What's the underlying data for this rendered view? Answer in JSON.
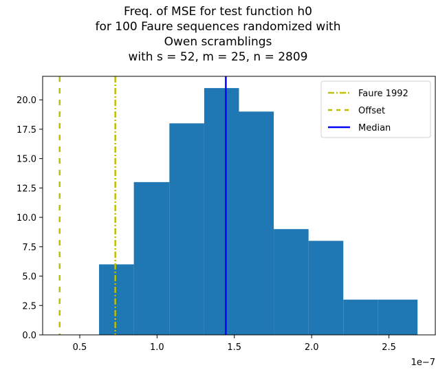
{
  "chart_data": {
    "type": "bar",
    "title_lines": [
      "Freq. of MSE for test function h0",
      "for 100 Faure sequences randomized with",
      "Owen scramblings",
      "with s = 52, m = 25, n = 2809"
    ],
    "xlabel": "",
    "ylabel": "",
    "x_offset_label": "1e−7",
    "xlim": [
      0.26,
      2.8
    ],
    "ylim": [
      0,
      22
    ],
    "x_ticks": [
      0.5,
      1.0,
      1.5,
      2.0,
      2.5
    ],
    "x_tick_labels": [
      "0.5",
      "1.0",
      "1.5",
      "2.0",
      "2.5"
    ],
    "y_ticks": [
      0,
      2.5,
      5,
      7.5,
      10,
      12.5,
      15,
      17.5,
      20
    ],
    "y_tick_labels": [
      "0.0",
      "2.5",
      "5.0",
      "7.5",
      "10.0",
      "12.5",
      "15.0",
      "17.5",
      "20.0"
    ],
    "bin_edges": [
      0.625,
      0.85,
      1.08,
      1.305,
      1.53,
      1.755,
      1.98,
      2.205,
      2.43,
      2.685
    ],
    "values": [
      6,
      13,
      18,
      21,
      19,
      9,
      8,
      3,
      3
    ],
    "bar_color": "#1f77b4",
    "reference_lines": [
      {
        "name": "Faure 1992",
        "x": 0.73,
        "color": "#bfbf00",
        "style": "dashdot"
      },
      {
        "name": "Offset",
        "x": 0.37,
        "color": "#bfbf00",
        "style": "dashed"
      },
      {
        "name": "Median",
        "x": 1.445,
        "color": "#0000ff",
        "style": "solid"
      }
    ],
    "legend_position": "upper-right",
    "grid": false
  }
}
